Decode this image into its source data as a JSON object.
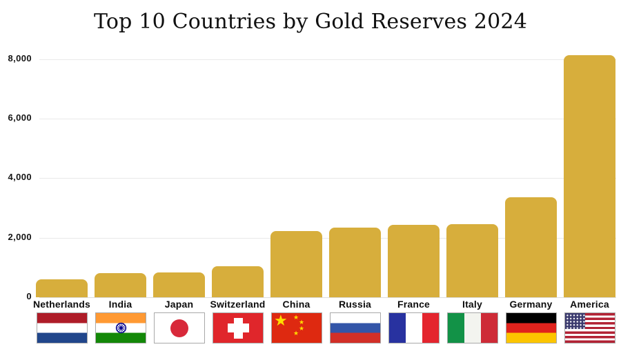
{
  "title": "Top 10 Countries by Gold Reserves 2024",
  "colors": {
    "bar": "#d7ae3c",
    "gridline": "#e9e9e9",
    "axis_text": "#141414",
    "title_text": "#101010"
  },
  "chart_data": {
    "type": "bar",
    "title": "Top 10 Countries by Gold Reserves 2024",
    "xlabel": "",
    "ylabel": "",
    "ylim": [
      0,
      8500
    ],
    "grid": true,
    "legend": false,
    "bar_color": "#d7ae3c",
    "y_ticks": [
      {
        "value": 0,
        "label": "0"
      },
      {
        "value": 2000,
        "label": "2,000"
      },
      {
        "value": 4000,
        "label": "4,000"
      },
      {
        "value": 6000,
        "label": "6,000"
      },
      {
        "value": 8000,
        "label": "8,000"
      }
    ],
    "categories": [
      "Netherlands",
      "India",
      "Japan",
      "Switzerland",
      "China",
      "Russia",
      "France",
      "Italy",
      "Germany",
      "America"
    ],
    "values": [
      612,
      822,
      846,
      1040,
      2235,
      2333,
      2437,
      2452,
      3352,
      8133
    ],
    "flags": [
      "netherlands",
      "india",
      "japan",
      "switzerland",
      "china",
      "russia",
      "france",
      "italy",
      "germany",
      "america"
    ]
  }
}
